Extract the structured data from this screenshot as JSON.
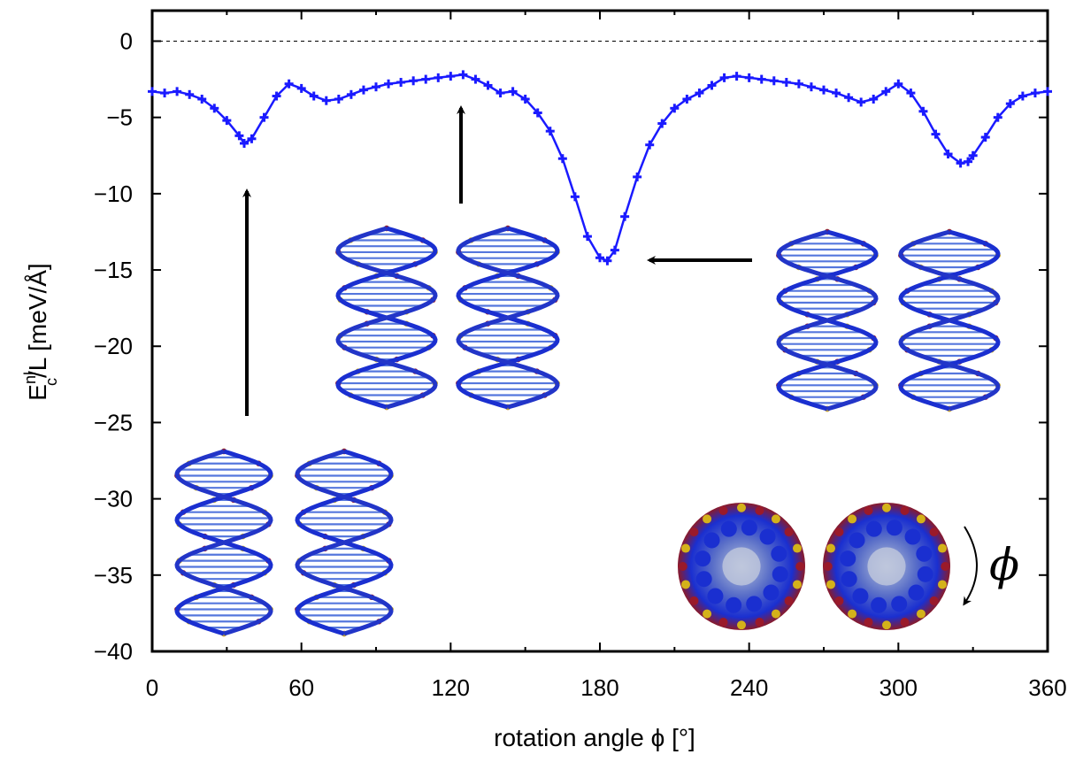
{
  "chart_data": {
    "type": "line",
    "xlabel": "rotation angle ϕ [°]",
    "ylabel": "E_c^nl/L [meV/Å]",
    "ylabel_parts": {
      "base": "E",
      "sup": "nl",
      "sub": "c",
      "rest": "/L [meV/Å]"
    },
    "xlim": [
      0,
      360
    ],
    "ylim": [
      -40,
      2
    ],
    "xticks": [
      "0",
      "60",
      "120",
      "180",
      "240",
      "300",
      "360"
    ],
    "yticks": [
      "0",
      "−5",
      "−10",
      "−15",
      "−20",
      "−25",
      "−30",
      "−35",
      "−40"
    ],
    "reference_line": {
      "y": 0,
      "style": "dashed"
    },
    "marker": "+",
    "color": "#1a1aff",
    "annotation_symbol": "ϕ",
    "series": [
      {
        "x": [
          0,
          5,
          10,
          15,
          20,
          25,
          30,
          35,
          37,
          40,
          45,
          50,
          55,
          60,
          65,
          70,
          75,
          80,
          85,
          90,
          95,
          100,
          105,
          110,
          115,
          120,
          125,
          130,
          135,
          140,
          145,
          150,
          155,
          160,
          165,
          170,
          175,
          180,
          183,
          186,
          190,
          195,
          200,
          205,
          210,
          215,
          220,
          225,
          230,
          235,
          240,
          245,
          250,
          255,
          260,
          265,
          270,
          275,
          280,
          285,
          290,
          295,
          300,
          305,
          310,
          315,
          320,
          325,
          328,
          330,
          335,
          340,
          345,
          350,
          355,
          360
        ],
        "y": [
          -3.3,
          -3.4,
          -3.3,
          -3.5,
          -3.8,
          -4.4,
          -5.2,
          -6.2,
          -6.7,
          -6.4,
          -5.0,
          -3.6,
          -2.8,
          -3.1,
          -3.6,
          -3.9,
          -3.8,
          -3.5,
          -3.2,
          -3.0,
          -2.8,
          -2.7,
          -2.6,
          -2.5,
          -2.4,
          -2.3,
          -2.2,
          -2.5,
          -2.9,
          -3.4,
          -3.3,
          -3.8,
          -4.7,
          -5.9,
          -7.7,
          -10.2,
          -12.8,
          -14.2,
          -14.4,
          -13.7,
          -11.5,
          -8.9,
          -6.8,
          -5.4,
          -4.4,
          -3.8,
          -3.4,
          -2.9,
          -2.4,
          -2.3,
          -2.4,
          -2.5,
          -2.6,
          -2.7,
          -2.8,
          -3.0,
          -3.2,
          -3.4,
          -3.7,
          -4.0,
          -3.8,
          -3.3,
          -2.8,
          -3.4,
          -4.6,
          -6.1,
          -7.4,
          -8.0,
          -7.9,
          -7.5,
          -6.3,
          -5.0,
          -4.1,
          -3.6,
          -3.4,
          -3.3
        ]
      }
    ]
  }
}
